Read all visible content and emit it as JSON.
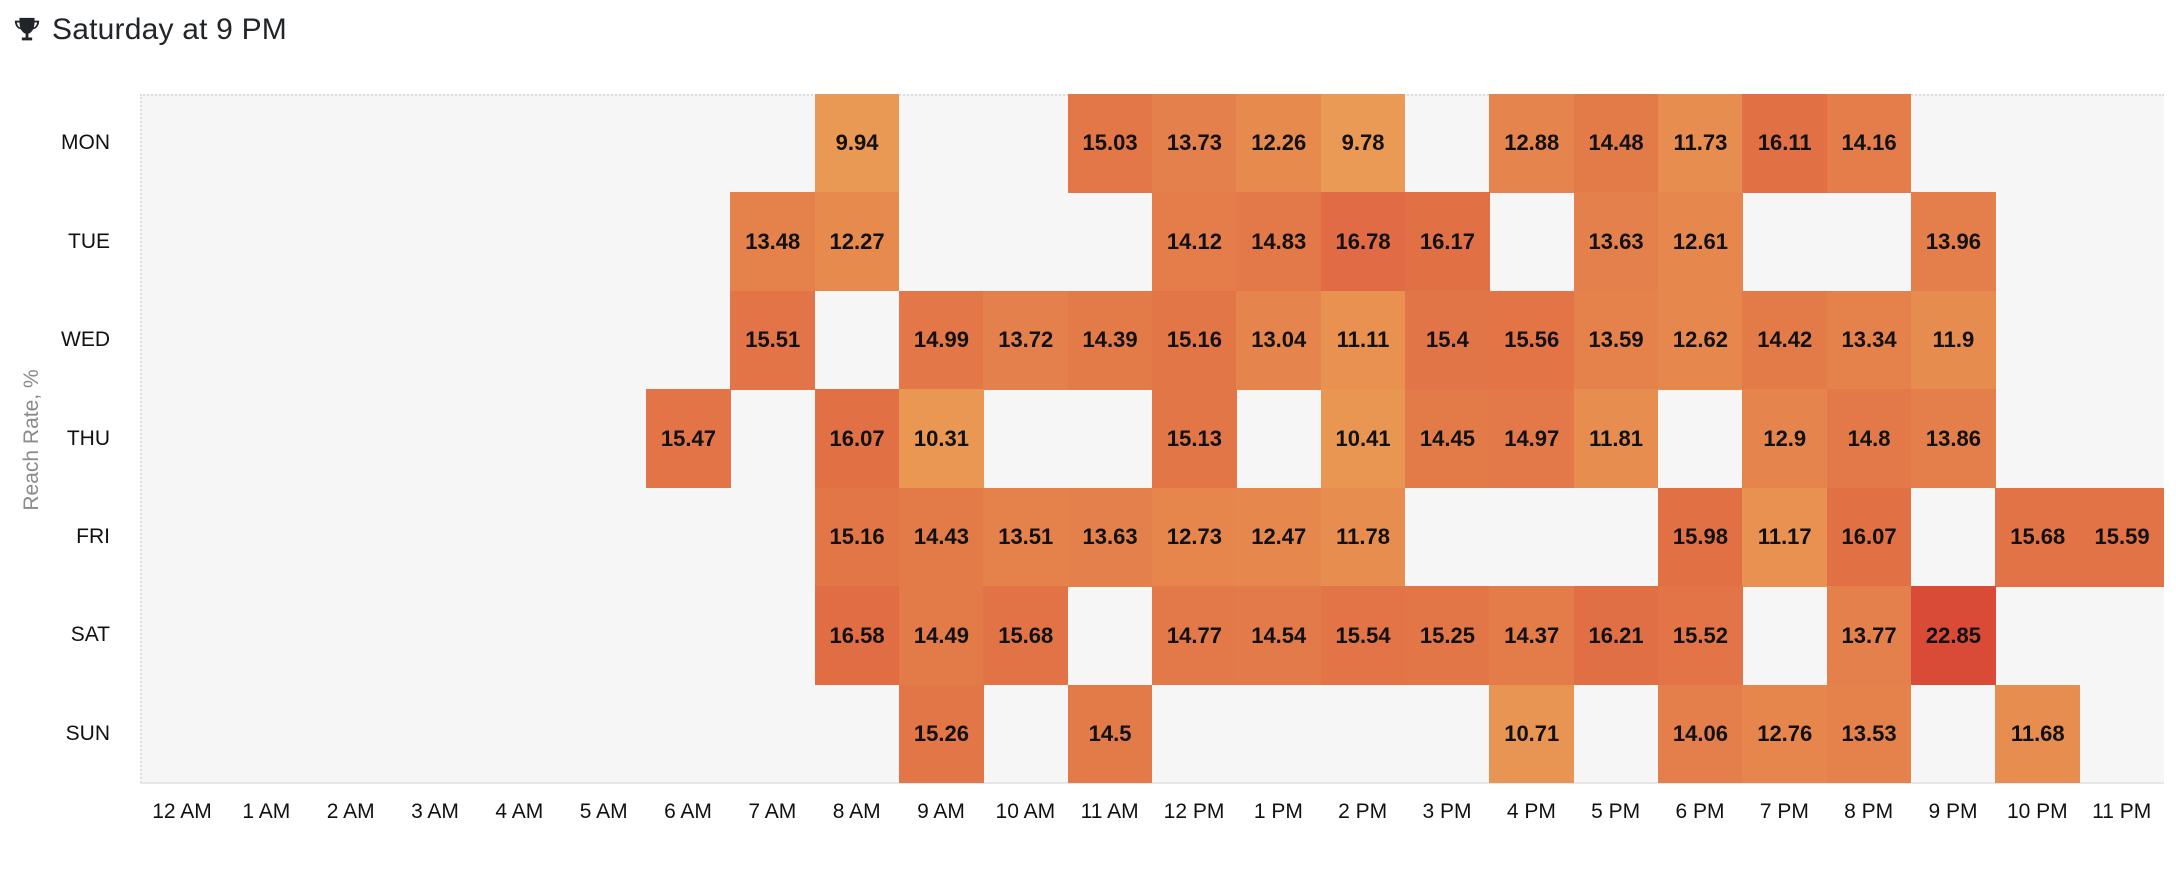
{
  "header": {
    "icon": "trophy-icon",
    "title": "Saturday at 9 PM"
  },
  "colors": {
    "plot_background": "#f6f6f6",
    "low": "#e89a54",
    "mid": "#e37f4a",
    "high": "#e07045",
    "max": "#d94c36"
  },
  "chart_data": {
    "type": "heatmap",
    "title": "Saturday at 9 PM",
    "ylabel": "Reach Rate, %",
    "xlabel": "",
    "x": [
      "12 AM",
      "1 AM",
      "2 AM",
      "3 AM",
      "4 AM",
      "5 AM",
      "6 AM",
      "7 AM",
      "8 AM",
      "9 AM",
      "10 AM",
      "11 AM",
      "12 PM",
      "1 PM",
      "2 PM",
      "3 PM",
      "4 PM",
      "5 PM",
      "6 PM",
      "7 PM",
      "8 PM",
      "9 PM",
      "10 PM",
      "11 PM"
    ],
    "y": [
      "MON",
      "TUE",
      "WED",
      "THU",
      "FRI",
      "SAT",
      "SUN"
    ],
    "values": [
      [
        null,
        null,
        null,
        null,
        null,
        null,
        null,
        null,
        9.94,
        null,
        null,
        15.03,
        13.73,
        12.26,
        9.78,
        null,
        12.88,
        14.48,
        11.73,
        16.11,
        14.16,
        null,
        null,
        null
      ],
      [
        null,
        null,
        null,
        null,
        null,
        null,
        null,
        13.48,
        12.27,
        null,
        null,
        null,
        14.12,
        14.83,
        16.78,
        16.17,
        null,
        13.63,
        12.61,
        null,
        null,
        13.96,
        null,
        null
      ],
      [
        null,
        null,
        null,
        null,
        null,
        null,
        null,
        15.51,
        null,
        14.99,
        13.72,
        14.39,
        15.16,
        13.04,
        11.11,
        15.4,
        15.56,
        13.59,
        12.62,
        14.42,
        13.34,
        11.9,
        null,
        null
      ],
      [
        null,
        null,
        null,
        null,
        null,
        null,
        15.47,
        null,
        16.07,
        10.31,
        null,
        null,
        15.13,
        null,
        10.41,
        14.45,
        14.97,
        11.81,
        null,
        12.9,
        14.8,
        13.86,
        null,
        null
      ],
      [
        null,
        null,
        null,
        null,
        null,
        null,
        null,
        null,
        15.16,
        14.43,
        13.51,
        13.63,
        12.73,
        12.47,
        11.78,
        null,
        null,
        null,
        15.98,
        11.17,
        16.07,
        null,
        15.68,
        15.59
      ],
      [
        null,
        null,
        null,
        null,
        null,
        null,
        null,
        null,
        16.58,
        14.49,
        15.68,
        null,
        14.77,
        14.54,
        15.54,
        15.25,
        14.37,
        16.21,
        15.52,
        null,
        13.77,
        22.85,
        null,
        null
      ],
      [
        null,
        null,
        null,
        null,
        null,
        null,
        null,
        null,
        null,
        15.26,
        null,
        14.5,
        null,
        null,
        null,
        null,
        10.71,
        null,
        14.06,
        12.76,
        13.53,
        null,
        11.68,
        null
      ]
    ],
    "best_slot": {
      "day": "SAT",
      "hour": "9 PM",
      "value": 22.85
    },
    "legend": "none",
    "grid": false
  }
}
